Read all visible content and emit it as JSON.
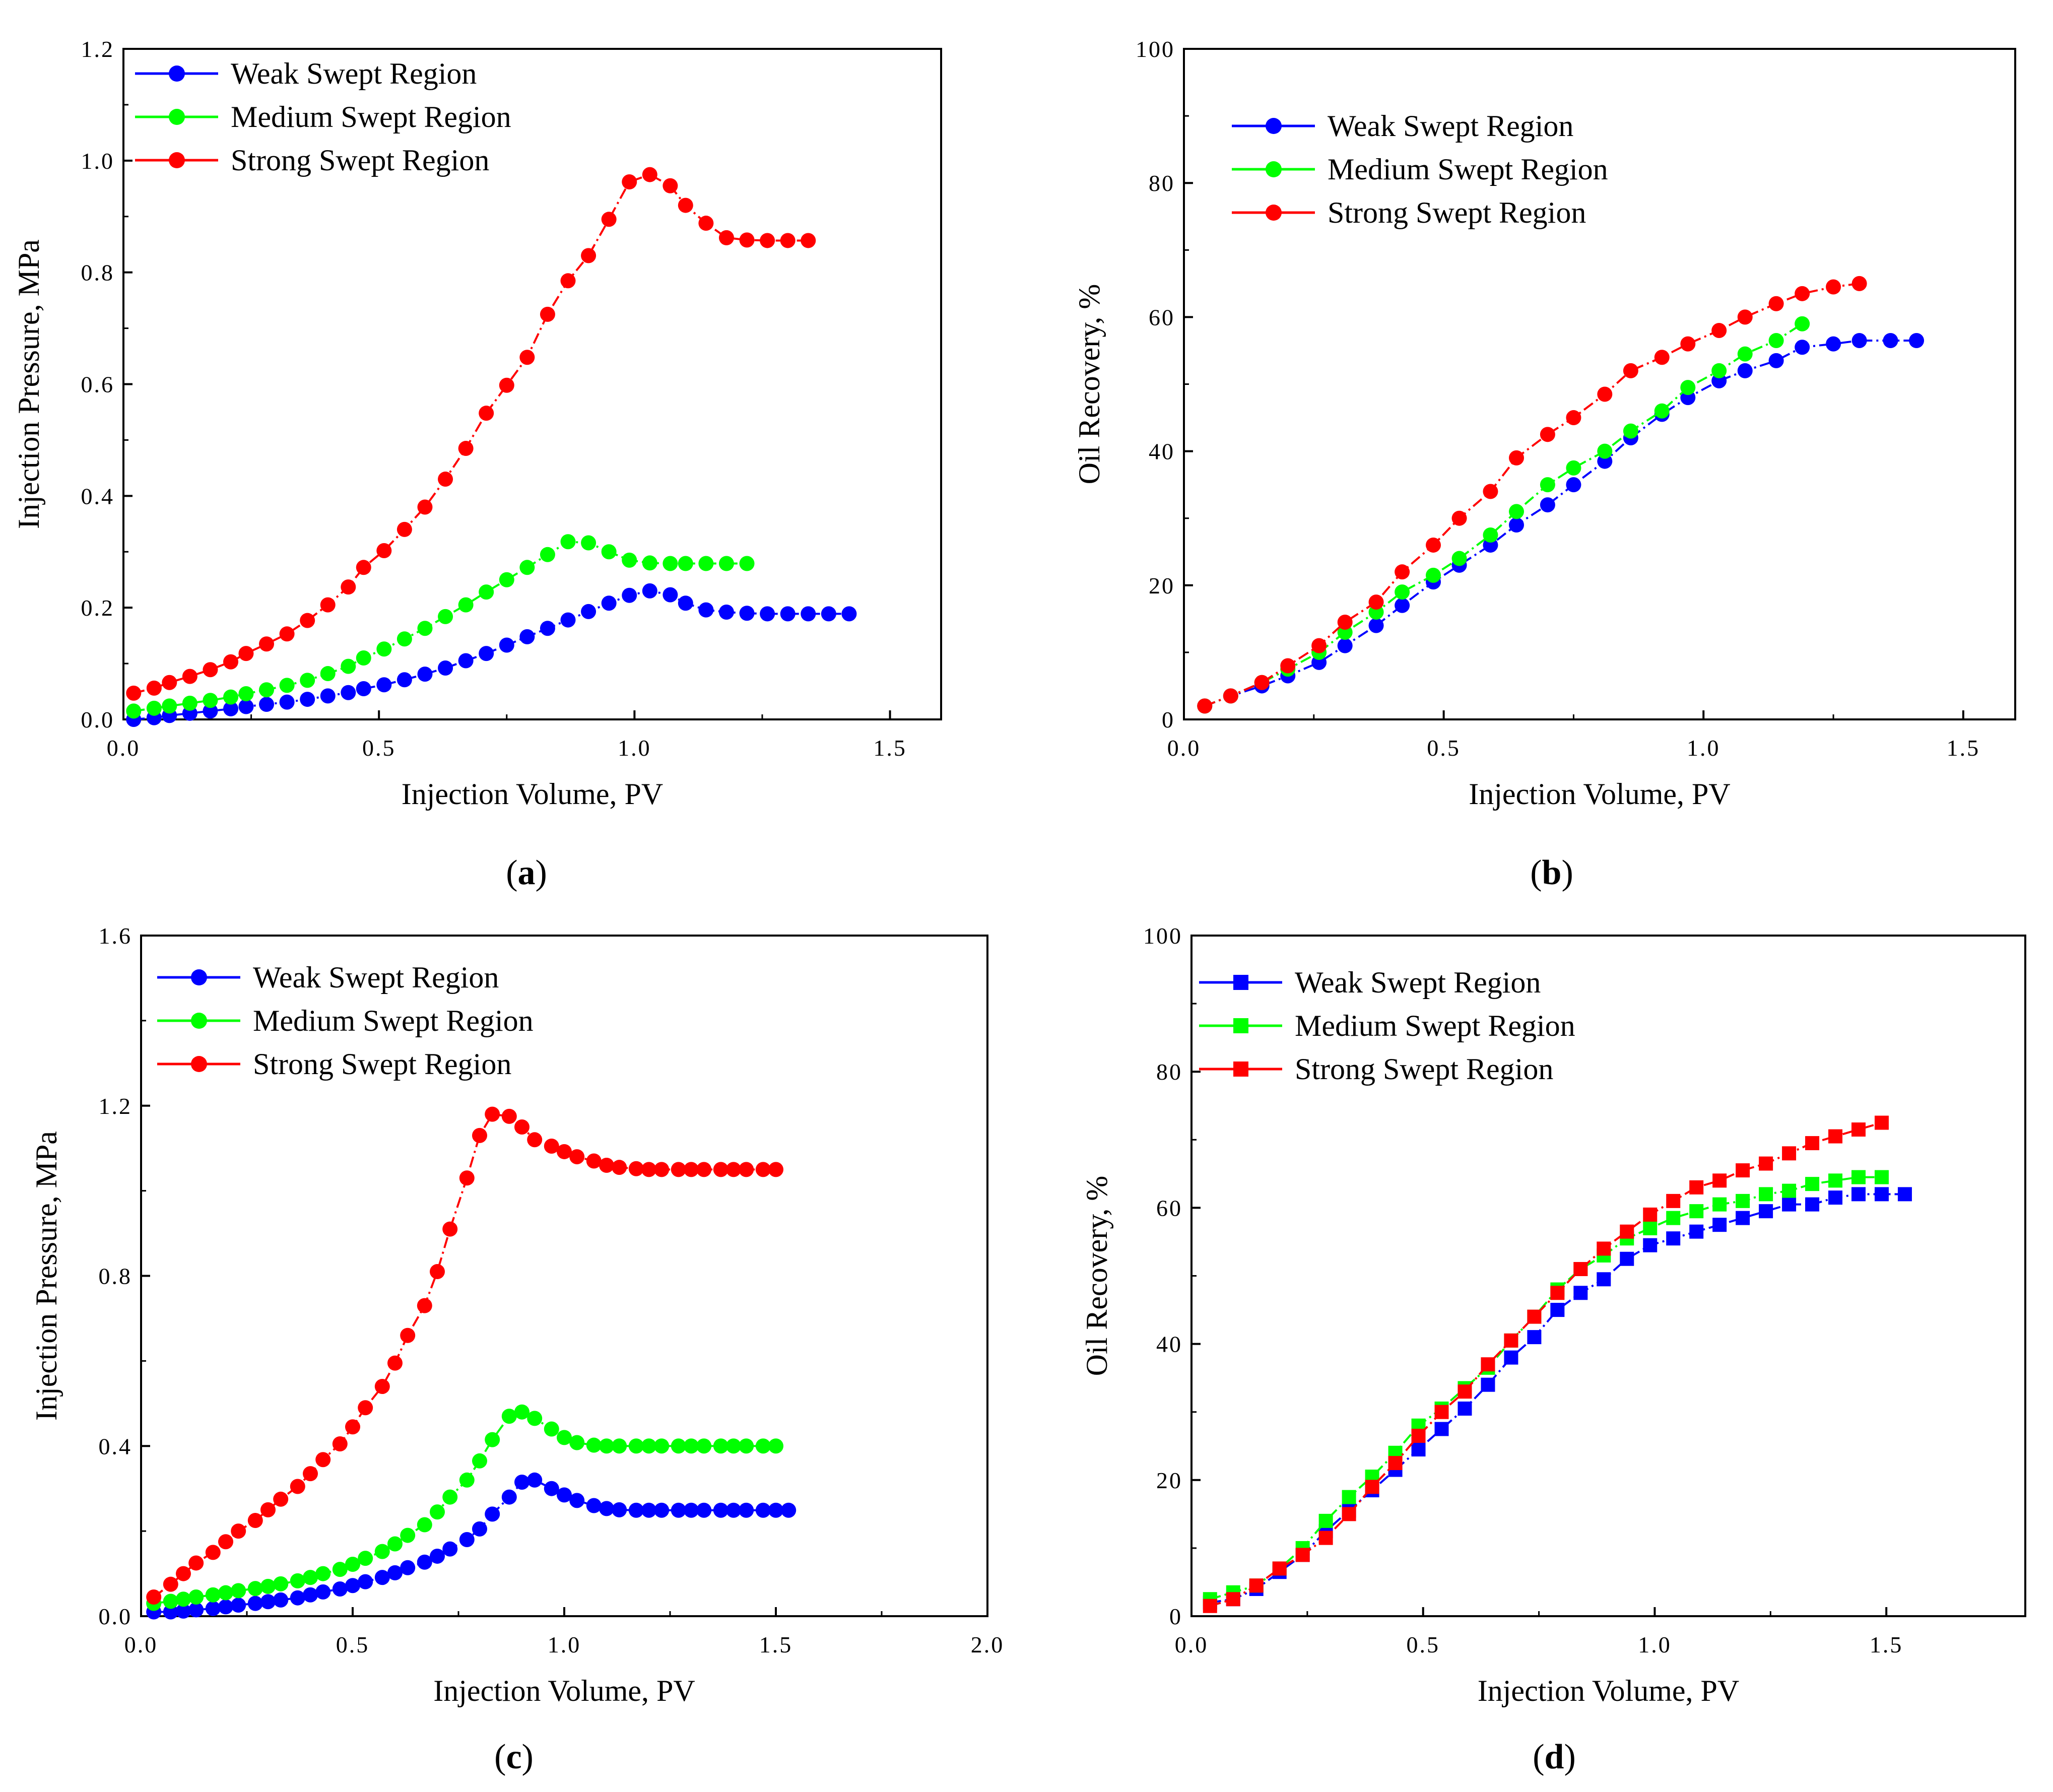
{
  "chart_data": [
    {
      "panel": "(a)",
      "panel_letter": "a",
      "type": "line",
      "xlabel": "Injection Volume, PV",
      "ylabel": "Injection Pressure, MPa",
      "xlim": [
        0.0,
        1.6
      ],
      "ylim": [
        0.0,
        1.2
      ],
      "xticks": [
        "0.0",
        "0.5",
        "1.0",
        "1.5"
      ],
      "yticks": [
        "0.0",
        "0.2",
        "0.4",
        "0.6",
        "0.8",
        "1.0",
        "1.2"
      ],
      "marker": "circle",
      "legend_position": "top-left",
      "series": [
        {
          "name": "Weak Swept Region",
          "color": "#0000ff",
          "x": [
            0.02,
            0.06,
            0.09,
            0.13,
            0.17,
            0.21,
            0.24,
            0.28,
            0.32,
            0.36,
            0.4,
            0.44,
            0.47,
            0.51,
            0.55,
            0.59,
            0.63,
            0.67,
            0.71,
            0.75,
            0.79,
            0.83,
            0.87,
            0.91,
            0.95,
            0.99,
            1.03,
            1.07,
            1.1,
            1.14,
            1.18,
            1.22,
            1.26,
            1.3,
            1.34,
            1.38,
            1.42
          ],
          "y": [
            0.0,
            0.003,
            0.007,
            0.011,
            0.015,
            0.019,
            0.023,
            0.027,
            0.031,
            0.036,
            0.042,
            0.048,
            0.055,
            0.062,
            0.071,
            0.081,
            0.092,
            0.105,
            0.118,
            0.133,
            0.148,
            0.163,
            0.178,
            0.193,
            0.208,
            0.222,
            0.23,
            0.223,
            0.208,
            0.196,
            0.192,
            0.19,
            0.189,
            0.189,
            0.189,
            0.189,
            0.189
          ]
        },
        {
          "name": "Medium Swept Region",
          "color": "#00ff00",
          "x": [
            0.02,
            0.06,
            0.09,
            0.13,
            0.17,
            0.21,
            0.24,
            0.28,
            0.32,
            0.36,
            0.4,
            0.44,
            0.47,
            0.51,
            0.55,
            0.59,
            0.63,
            0.67,
            0.71,
            0.75,
            0.79,
            0.83,
            0.87,
            0.91,
            0.95,
            0.99,
            1.03,
            1.07,
            1.1,
            1.14,
            1.18,
            1.22
          ],
          "y": [
            0.015,
            0.02,
            0.024,
            0.029,
            0.034,
            0.04,
            0.046,
            0.053,
            0.061,
            0.07,
            0.082,
            0.095,
            0.11,
            0.126,
            0.144,
            0.163,
            0.184,
            0.205,
            0.228,
            0.25,
            0.272,
            0.295,
            0.318,
            0.316,
            0.3,
            0.285,
            0.28,
            0.279,
            0.279,
            0.279,
            0.279,
            0.279
          ]
        },
        {
          "name": "Strong Swept Region",
          "color": "#ff0000",
          "x": [
            0.02,
            0.06,
            0.09,
            0.13,
            0.17,
            0.21,
            0.24,
            0.28,
            0.32,
            0.36,
            0.4,
            0.44,
            0.47,
            0.51,
            0.55,
            0.59,
            0.63,
            0.67,
            0.71,
            0.75,
            0.79,
            0.83,
            0.87,
            0.91,
            0.95,
            0.99,
            1.03,
            1.07,
            1.1,
            1.14,
            1.18,
            1.22,
            1.26,
            1.3,
            1.34
          ],
          "y": [
            0.047,
            0.056,
            0.066,
            0.077,
            0.089,
            0.103,
            0.118,
            0.135,
            0.153,
            0.177,
            0.205,
            0.237,
            0.272,
            0.302,
            0.34,
            0.38,
            0.43,
            0.485,
            0.548,
            0.598,
            0.648,
            0.725,
            0.785,
            0.83,
            0.895,
            0.962,
            0.975,
            0.955,
            0.92,
            0.888,
            0.862,
            0.858,
            0.857,
            0.857,
            0.857
          ]
        }
      ]
    },
    {
      "panel": "(b)",
      "panel_letter": "b",
      "type": "line",
      "xlabel": "Injection Volume, PV",
      "ylabel": "Oil Recovery, %",
      "xlim": [
        0.0,
        1.6
      ],
      "ylim": [
        0,
        100
      ],
      "xticks": [
        "0.0",
        "0.5",
        "1.0",
        "1.5"
      ],
      "yticks": [
        "0",
        "20",
        "40",
        "60",
        "80",
        "100"
      ],
      "marker": "circle",
      "legend_position": "top-left",
      "series": [
        {
          "name": "Weak Swept Region",
          "color": "#0000ff",
          "x": [
            0.04,
            0.09,
            0.15,
            0.2,
            0.26,
            0.31,
            0.37,
            0.42,
            0.48,
            0.53,
            0.59,
            0.64,
            0.7,
            0.75,
            0.81,
            0.86,
            0.92,
            0.97,
            1.03,
            1.08,
            1.14,
            1.19,
            1.25,
            1.3,
            1.36,
            1.41
          ],
          "y": [
            2.0,
            3.5,
            5.0,
            6.5,
            8.5,
            11.0,
            14.0,
            17.0,
            20.5,
            23.0,
            26.0,
            29.0,
            32.0,
            35.0,
            38.5,
            42.0,
            45.5,
            48.0,
            50.5,
            52.0,
            53.5,
            55.5,
            56.0,
            56.5,
            56.5,
            56.5
          ]
        },
        {
          "name": "Medium Swept Region",
          "color": "#00ff00",
          "x": [
            0.04,
            0.09,
            0.15,
            0.2,
            0.26,
            0.31,
            0.37,
            0.42,
            0.48,
            0.53,
            0.59,
            0.64,
            0.7,
            0.75,
            0.81,
            0.86,
            0.92,
            0.97,
            1.03,
            1.08,
            1.14,
            1.19
          ],
          "y": [
            2.0,
            3.5,
            5.5,
            7.5,
            10.0,
            13.0,
            16.0,
            19.0,
            21.5,
            24.0,
            27.5,
            31.0,
            35.0,
            37.5,
            40.0,
            43.0,
            46.0,
            49.5,
            52.0,
            54.5,
            56.5,
            59.0
          ]
        },
        {
          "name": "Strong Swept Region",
          "color": "#ff0000",
          "x": [
            0.04,
            0.09,
            0.15,
            0.2,
            0.26,
            0.31,
            0.37,
            0.42,
            0.48,
            0.53,
            0.59,
            0.64,
            0.7,
            0.75,
            0.81,
            0.86,
            0.92,
            0.97,
            1.03,
            1.08,
            1.14,
            1.19,
            1.25,
            1.3
          ],
          "y": [
            2.0,
            3.5,
            5.5,
            8.0,
            11.0,
            14.5,
            17.5,
            22.0,
            26.0,
            30.0,
            34.0,
            39.0,
            42.5,
            45.0,
            48.5,
            52.0,
            54.0,
            56.0,
            58.0,
            60.0,
            62.0,
            63.5,
            64.5,
            65.0
          ]
        }
      ]
    },
    {
      "panel": "(c)",
      "panel_letter": "c",
      "type": "line",
      "xlabel": "Injection Volume, PV",
      "ylabel": "Injection Pressure, MPa",
      "xlim": [
        0.0,
        2.0
      ],
      "ylim": [
        0.0,
        1.6
      ],
      "xticks": [
        "0.0",
        "0.5",
        "1.0",
        "1.5",
        "2.0"
      ],
      "yticks": [
        "0.0",
        "0.4",
        "0.8",
        "1.2",
        "1.6"
      ],
      "marker": "circle",
      "legend_position": "top-left",
      "series": [
        {
          "name": "Weak Swept Region",
          "color": "#0000ff",
          "x": [
            0.03,
            0.07,
            0.1,
            0.13,
            0.17,
            0.2,
            0.23,
            0.27,
            0.3,
            0.33,
            0.37,
            0.4,
            0.43,
            0.47,
            0.5,
            0.53,
            0.57,
            0.6,
            0.63,
            0.67,
            0.7,
            0.73,
            0.77,
            0.8,
            0.83,
            0.87,
            0.9,
            0.93,
            0.97,
            1.0,
            1.03,
            1.07,
            1.1,
            1.13,
            1.17,
            1.2,
            1.23,
            1.27,
            1.3,
            1.33,
            1.37,
            1.4,
            1.43,
            1.47,
            1.5,
            1.53
          ],
          "y": [
            0.01,
            0.01,
            0.012,
            0.015,
            0.018,
            0.022,
            0.026,
            0.03,
            0.034,
            0.038,
            0.043,
            0.05,
            0.057,
            0.064,
            0.072,
            0.081,
            0.091,
            0.102,
            0.114,
            0.127,
            0.141,
            0.158,
            0.18,
            0.205,
            0.24,
            0.28,
            0.315,
            0.32,
            0.3,
            0.285,
            0.272,
            0.26,
            0.253,
            0.25,
            0.249,
            0.249,
            0.249,
            0.249,
            0.249,
            0.249,
            0.249,
            0.249,
            0.249,
            0.249,
            0.249,
            0.249
          ]
        },
        {
          "name": "Medium Swept Region",
          "color": "#00ff00",
          "x": [
            0.03,
            0.07,
            0.1,
            0.13,
            0.17,
            0.2,
            0.23,
            0.27,
            0.3,
            0.33,
            0.37,
            0.4,
            0.43,
            0.47,
            0.5,
            0.53,
            0.57,
            0.6,
            0.63,
            0.67,
            0.7,
            0.73,
            0.77,
            0.8,
            0.83,
            0.87,
            0.9,
            0.93,
            0.97,
            1.0,
            1.03,
            1.07,
            1.1,
            1.13,
            1.17,
            1.2,
            1.23,
            1.27,
            1.3,
            1.33,
            1.37,
            1.4,
            1.43,
            1.47,
            1.5
          ],
          "y": [
            0.03,
            0.035,
            0.04,
            0.045,
            0.05,
            0.055,
            0.06,
            0.065,
            0.07,
            0.076,
            0.083,
            0.091,
            0.1,
            0.11,
            0.122,
            0.136,
            0.152,
            0.17,
            0.19,
            0.215,
            0.245,
            0.28,
            0.32,
            0.365,
            0.415,
            0.47,
            0.48,
            0.465,
            0.44,
            0.42,
            0.408,
            0.402,
            0.4,
            0.4,
            0.4,
            0.4,
            0.4,
            0.4,
            0.4,
            0.4,
            0.4,
            0.4,
            0.4,
            0.4,
            0.4
          ]
        },
        {
          "name": "Strong Swept Region",
          "color": "#ff0000",
          "x": [
            0.03,
            0.07,
            0.1,
            0.13,
            0.17,
            0.2,
            0.23,
            0.27,
            0.3,
            0.33,
            0.37,
            0.4,
            0.43,
            0.47,
            0.5,
            0.53,
            0.57,
            0.6,
            0.63,
            0.67,
            0.7,
            0.73,
            0.77,
            0.8,
            0.83,
            0.87,
            0.9,
            0.93,
            0.97,
            1.0,
            1.03,
            1.07,
            1.1,
            1.13,
            1.17,
            1.2,
            1.23,
            1.27,
            1.3,
            1.33,
            1.37,
            1.4,
            1.43,
            1.47,
            1.5
          ],
          "y": [
            0.045,
            0.075,
            0.1,
            0.125,
            0.15,
            0.175,
            0.2,
            0.225,
            0.25,
            0.275,
            0.305,
            0.335,
            0.368,
            0.405,
            0.445,
            0.49,
            0.54,
            0.595,
            0.66,
            0.73,
            0.81,
            0.91,
            1.03,
            1.13,
            1.18,
            1.175,
            1.15,
            1.12,
            1.105,
            1.092,
            1.08,
            1.07,
            1.06,
            1.055,
            1.052,
            1.05,
            1.05,
            1.05,
            1.05,
            1.05,
            1.05,
            1.05,
            1.05,
            1.05,
            1.05
          ]
        }
      ]
    },
    {
      "panel": "(d)",
      "panel_letter": "d",
      "type": "line",
      "xlabel": "Injection Volume, PV",
      "ylabel": "Oil Recovery, %",
      "xlim": [
        0.0,
        1.8
      ],
      "ylim": [
        0,
        100
      ],
      "xticks": [
        "0.0",
        "0.5",
        "1.0",
        "1.5"
      ],
      "yticks": [
        "0",
        "20",
        "40",
        "60",
        "80",
        "100"
      ],
      "marker": "square",
      "legend_position": "top-left",
      "series": [
        {
          "name": "Weak Swept Region",
          "color": "#0000ff",
          "x": [
            0.04,
            0.09,
            0.14,
            0.19,
            0.24,
            0.29,
            0.34,
            0.39,
            0.44,
            0.49,
            0.54,
            0.59,
            0.64,
            0.69,
            0.74,
            0.79,
            0.84,
            0.89,
            0.94,
            0.99,
            1.04,
            1.09,
            1.14,
            1.19,
            1.24,
            1.29,
            1.34,
            1.39,
            1.44,
            1.49,
            1.54
          ],
          "y": [
            2.0,
            2.5,
            4.0,
            6.5,
            9.0,
            12.5,
            15.5,
            18.5,
            21.5,
            24.5,
            27.5,
            30.5,
            34.0,
            38.0,
            41.0,
            45.0,
            47.5,
            49.5,
            52.5,
            54.5,
            55.5,
            56.5,
            57.5,
            58.5,
            59.5,
            60.5,
            60.5,
            61.5,
            62.0,
            62.0,
            62.0
          ]
        },
        {
          "name": "Medium Swept Region",
          "color": "#00ff00",
          "x": [
            0.04,
            0.09,
            0.14,
            0.19,
            0.24,
            0.29,
            0.34,
            0.39,
            0.44,
            0.49,
            0.54,
            0.59,
            0.64,
            0.69,
            0.74,
            0.79,
            0.84,
            0.89,
            0.94,
            0.99,
            1.04,
            1.09,
            1.14,
            1.19,
            1.24,
            1.29,
            1.34,
            1.39,
            1.44,
            1.49
          ],
          "y": [
            2.5,
            3.5,
            4.5,
            7.0,
            10.0,
            14.0,
            17.5,
            20.5,
            24.0,
            28.0,
            30.5,
            33.5,
            36.5,
            40.5,
            44.0,
            48.0,
            51.0,
            53.0,
            55.5,
            57.0,
            58.5,
            59.5,
            60.5,
            61.0,
            62.0,
            62.5,
            63.5,
            64.0,
            64.5,
            64.5
          ]
        },
        {
          "name": "Strong Swept Region",
          "color": "#ff0000",
          "x": [
            0.04,
            0.09,
            0.14,
            0.19,
            0.24,
            0.29,
            0.34,
            0.39,
            0.44,
            0.49,
            0.54,
            0.59,
            0.64,
            0.69,
            0.74,
            0.79,
            0.84,
            0.89,
            0.94,
            0.99,
            1.04,
            1.09,
            1.14,
            1.19,
            1.24,
            1.29,
            1.34,
            1.39,
            1.44,
            1.49
          ],
          "y": [
            1.5,
            2.5,
            4.5,
            7.0,
            9.0,
            11.5,
            15.0,
            19.0,
            22.5,
            26.5,
            30.0,
            33.0,
            37.0,
            40.5,
            44.0,
            47.5,
            51.0,
            54.0,
            56.5,
            59.0,
            61.0,
            63.0,
            64.0,
            65.5,
            66.5,
            68.0,
            69.5,
            70.5,
            71.5,
            72.5
          ]
        }
      ]
    }
  ]
}
